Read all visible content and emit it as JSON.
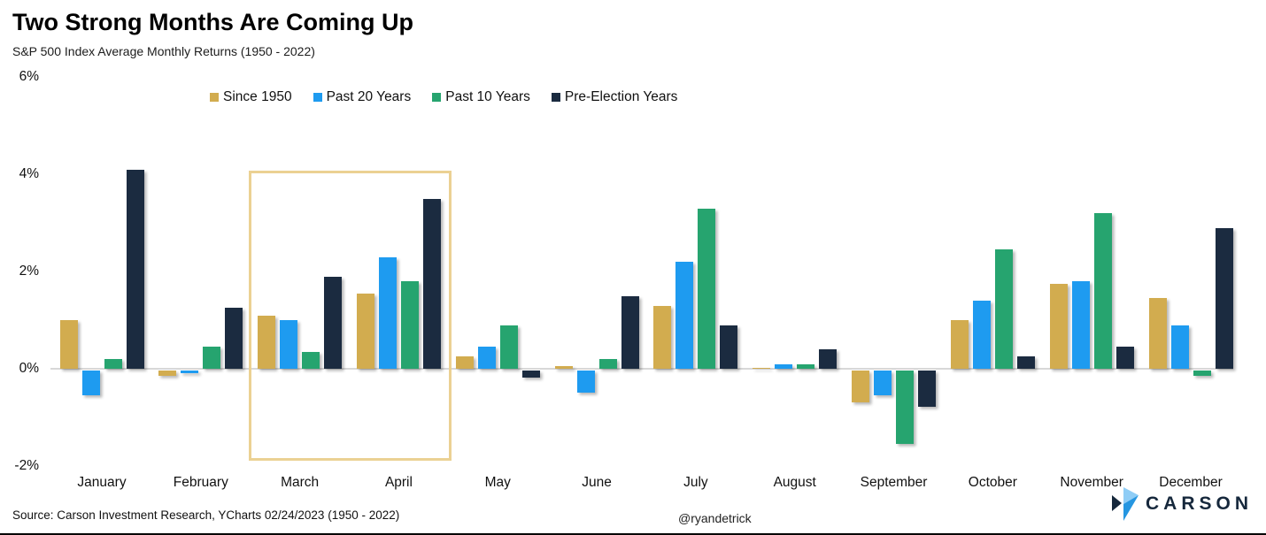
{
  "header": {
    "title": "Two Strong Months Are Coming Up",
    "subtitle": "S&P 500 Index Average Monthly Returns (1950 - 2022)"
  },
  "chart_data": {
    "type": "bar",
    "categories": [
      "January",
      "February",
      "March",
      "April",
      "May",
      "June",
      "July",
      "August",
      "September",
      "October",
      "November",
      "December"
    ],
    "series": [
      {
        "name": "Since 1950",
        "color": "#D2AC4F",
        "values": [
          1.0,
          -0.1,
          1.1,
          1.55,
          0.25,
          0.05,
          1.3,
          0.01,
          -0.65,
          1.0,
          1.75,
          1.45
        ]
      },
      {
        "name": "Past 20 Years",
        "color": "#1E9BF0",
        "values": [
          -0.5,
          -0.05,
          1.0,
          2.3,
          0.45,
          -0.45,
          2.2,
          0.1,
          -0.5,
          1.4,
          1.8,
          0.9
        ]
      },
      {
        "name": "Past 10 Years",
        "color": "#26A46F",
        "values": [
          0.2,
          0.45,
          0.35,
          1.8,
          0.9,
          0.2,
          3.3,
          0.1,
          -1.5,
          2.45,
          3.2,
          -0.1
        ]
      },
      {
        "name": "Pre-Election Years",
        "color": "#1B2B40",
        "values": [
          4.1,
          1.25,
          1.9,
          3.5,
          -0.15,
          1.5,
          0.9,
          0.4,
          -0.75,
          0.25,
          0.45,
          2.9
        ]
      }
    ],
    "y_ticks": [
      "6%",
      "4%",
      "2%",
      "0%",
      "-2%"
    ],
    "ylim": [
      -2,
      6
    ],
    "grid": false,
    "legend_position": "top",
    "highlight": {
      "months": [
        "March",
        "April"
      ],
      "box_color": "#EBD193"
    }
  },
  "footer": {
    "source": "Source: Carson Investment Research, YCharts 02/24/2023 (1950 - 2022)",
    "handle": "@ryandetrick",
    "logo_text": "CARSON"
  },
  "colors": {
    "axis_line": "#D8D8D8",
    "logo_navy": "#16283C",
    "logo_light_blue": "#8FCDF6",
    "logo_mid_blue": "#2596E1"
  }
}
